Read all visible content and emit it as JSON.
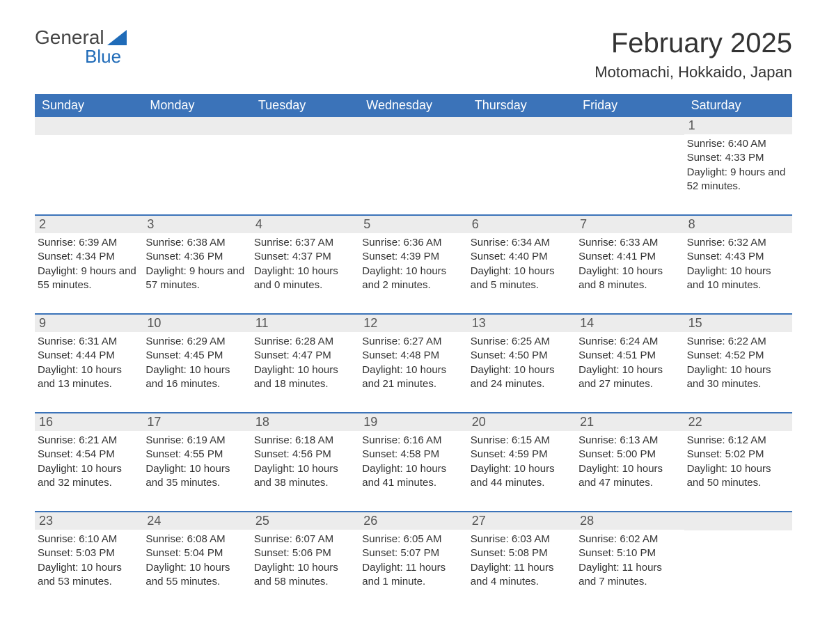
{
  "brand": {
    "word1": "General",
    "word2": "Blue",
    "accent_color": "#1f6bb8"
  },
  "title": "February 2025",
  "location": "Motomachi, Hokkaido, Japan",
  "colors": {
    "header_bg": "#3b73b9",
    "header_text": "#ffffff",
    "rule": "#3b73b9",
    "daynum_bg": "#ececec",
    "body_text": "#333333",
    "page_bg": "#ffffff"
  },
  "layout": {
    "columns": 7,
    "rows": 5,
    "first_day_column_index": 6
  },
  "days_of_week": [
    "Sunday",
    "Monday",
    "Tuesday",
    "Wednesday",
    "Thursday",
    "Friday",
    "Saturday"
  ],
  "labels": {
    "sunrise": "Sunrise",
    "sunset": "Sunset",
    "daylight": "Daylight"
  },
  "days": [
    {
      "n": 1,
      "sunrise": "6:40 AM",
      "sunset": "4:33 PM",
      "daylight": "9 hours and 52 minutes."
    },
    {
      "n": 2,
      "sunrise": "6:39 AM",
      "sunset": "4:34 PM",
      "daylight": "9 hours and 55 minutes."
    },
    {
      "n": 3,
      "sunrise": "6:38 AM",
      "sunset": "4:36 PM",
      "daylight": "9 hours and 57 minutes."
    },
    {
      "n": 4,
      "sunrise": "6:37 AM",
      "sunset": "4:37 PM",
      "daylight": "10 hours and 0 minutes."
    },
    {
      "n": 5,
      "sunrise": "6:36 AM",
      "sunset": "4:39 PM",
      "daylight": "10 hours and 2 minutes."
    },
    {
      "n": 6,
      "sunrise": "6:34 AM",
      "sunset": "4:40 PM",
      "daylight": "10 hours and 5 minutes."
    },
    {
      "n": 7,
      "sunrise": "6:33 AM",
      "sunset": "4:41 PM",
      "daylight": "10 hours and 8 minutes."
    },
    {
      "n": 8,
      "sunrise": "6:32 AM",
      "sunset": "4:43 PM",
      "daylight": "10 hours and 10 minutes."
    },
    {
      "n": 9,
      "sunrise": "6:31 AM",
      "sunset": "4:44 PM",
      "daylight": "10 hours and 13 minutes."
    },
    {
      "n": 10,
      "sunrise": "6:29 AM",
      "sunset": "4:45 PM",
      "daylight": "10 hours and 16 minutes."
    },
    {
      "n": 11,
      "sunrise": "6:28 AM",
      "sunset": "4:47 PM",
      "daylight": "10 hours and 18 minutes."
    },
    {
      "n": 12,
      "sunrise": "6:27 AM",
      "sunset": "4:48 PM",
      "daylight": "10 hours and 21 minutes."
    },
    {
      "n": 13,
      "sunrise": "6:25 AM",
      "sunset": "4:50 PM",
      "daylight": "10 hours and 24 minutes."
    },
    {
      "n": 14,
      "sunrise": "6:24 AM",
      "sunset": "4:51 PM",
      "daylight": "10 hours and 27 minutes."
    },
    {
      "n": 15,
      "sunrise": "6:22 AM",
      "sunset": "4:52 PM",
      "daylight": "10 hours and 30 minutes."
    },
    {
      "n": 16,
      "sunrise": "6:21 AM",
      "sunset": "4:54 PM",
      "daylight": "10 hours and 32 minutes."
    },
    {
      "n": 17,
      "sunrise": "6:19 AM",
      "sunset": "4:55 PM",
      "daylight": "10 hours and 35 minutes."
    },
    {
      "n": 18,
      "sunrise": "6:18 AM",
      "sunset": "4:56 PM",
      "daylight": "10 hours and 38 minutes."
    },
    {
      "n": 19,
      "sunrise": "6:16 AM",
      "sunset": "4:58 PM",
      "daylight": "10 hours and 41 minutes."
    },
    {
      "n": 20,
      "sunrise": "6:15 AM",
      "sunset": "4:59 PM",
      "daylight": "10 hours and 44 minutes."
    },
    {
      "n": 21,
      "sunrise": "6:13 AM",
      "sunset": "5:00 PM",
      "daylight": "10 hours and 47 minutes."
    },
    {
      "n": 22,
      "sunrise": "6:12 AM",
      "sunset": "5:02 PM",
      "daylight": "10 hours and 50 minutes."
    },
    {
      "n": 23,
      "sunrise": "6:10 AM",
      "sunset": "5:03 PM",
      "daylight": "10 hours and 53 minutes."
    },
    {
      "n": 24,
      "sunrise": "6:08 AM",
      "sunset": "5:04 PM",
      "daylight": "10 hours and 55 minutes."
    },
    {
      "n": 25,
      "sunrise": "6:07 AM",
      "sunset": "5:06 PM",
      "daylight": "10 hours and 58 minutes."
    },
    {
      "n": 26,
      "sunrise": "6:05 AM",
      "sunset": "5:07 PM",
      "daylight": "11 hours and 1 minute."
    },
    {
      "n": 27,
      "sunrise": "6:03 AM",
      "sunset": "5:08 PM",
      "daylight": "11 hours and 4 minutes."
    },
    {
      "n": 28,
      "sunrise": "6:02 AM",
      "sunset": "5:10 PM",
      "daylight": "11 hours and 7 minutes."
    }
  ]
}
